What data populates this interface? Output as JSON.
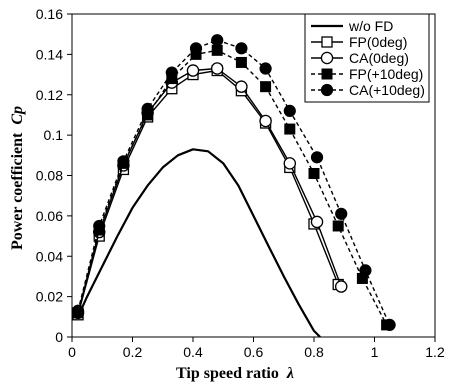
{
  "chart_data": {
    "type": "line",
    "xlabel": "Tip speed ratio",
    "xlabel_symbol": "λ",
    "ylabel": "Power coefficient",
    "ylabel_symbol": "Cp",
    "xlim": [
      0,
      1.2
    ],
    "ylim": [
      0,
      0.16
    ],
    "xticks": [
      0,
      0.2,
      0.4,
      0.6,
      0.8,
      1,
      1.2
    ],
    "xtick_labels": [
      "0",
      "0.2",
      "0.4",
      "0.6",
      "0.8",
      "1",
      "1.2"
    ],
    "yticks": [
      0,
      0.02,
      0.04,
      0.06,
      0.08,
      0.1,
      0.12,
      0.14,
      0.16
    ],
    "ytick_labels": [
      "0",
      "0.02",
      "0.04",
      "0.06",
      "0.08",
      "0.1",
      "0.12",
      "0.14",
      "0.16"
    ],
    "grid": false,
    "legend_position": "top-right",
    "series": [
      {
        "name": "w/o FD",
        "line": "solid",
        "marker": "none",
        "x": [
          0.02,
          0.05,
          0.1,
          0.15,
          0.2,
          0.25,
          0.3,
          0.35,
          0.4,
          0.45,
          0.5,
          0.55,
          0.6,
          0.65,
          0.7,
          0.75,
          0.8,
          0.82
        ],
        "y": [
          0.01,
          0.02,
          0.035,
          0.05,
          0.064,
          0.075,
          0.084,
          0.09,
          0.093,
          0.092,
          0.086,
          0.075,
          0.06,
          0.045,
          0.03,
          0.016,
          0.003,
          0.0
        ]
      },
      {
        "name": "FP(0deg)",
        "line": "solid",
        "marker": "open-square",
        "x": [
          0.02,
          0.09,
          0.17,
          0.25,
          0.33,
          0.4,
          0.48,
          0.56,
          0.64,
          0.72,
          0.8,
          0.88
        ],
        "y": [
          0.011,
          0.05,
          0.083,
          0.109,
          0.123,
          0.13,
          0.132,
          0.122,
          0.106,
          0.084,
          0.056,
          0.026
        ]
      },
      {
        "name": "CA(0deg)",
        "line": "solid",
        "marker": "open-circle",
        "x": [
          0.02,
          0.09,
          0.17,
          0.25,
          0.33,
          0.4,
          0.48,
          0.56,
          0.64,
          0.72,
          0.81,
          0.89
        ],
        "y": [
          0.012,
          0.052,
          0.085,
          0.111,
          0.126,
          0.132,
          0.133,
          0.124,
          0.107,
          0.086,
          0.057,
          0.025
        ]
      },
      {
        "name": "FP(+10deg)",
        "line": "dashed",
        "marker": "filled-square",
        "x": [
          0.02,
          0.09,
          0.17,
          0.25,
          0.33,
          0.41,
          0.48,
          0.56,
          0.64,
          0.72,
          0.8,
          0.88,
          0.96,
          1.04
        ],
        "y": [
          0.012,
          0.053,
          0.086,
          0.11,
          0.128,
          0.14,
          0.142,
          0.136,
          0.124,
          0.103,
          0.081,
          0.055,
          0.029,
          0.006
        ]
      },
      {
        "name": "CA(+10deg)",
        "line": "dashed",
        "marker": "filled-circle",
        "x": [
          0.02,
          0.09,
          0.17,
          0.25,
          0.33,
          0.41,
          0.48,
          0.56,
          0.64,
          0.72,
          0.81,
          0.89,
          0.97,
          1.05
        ],
        "y": [
          0.013,
          0.055,
          0.087,
          0.113,
          0.131,
          0.143,
          0.147,
          0.143,
          0.133,
          0.112,
          0.089,
          0.061,
          0.033,
          0.006
        ]
      }
    ]
  }
}
